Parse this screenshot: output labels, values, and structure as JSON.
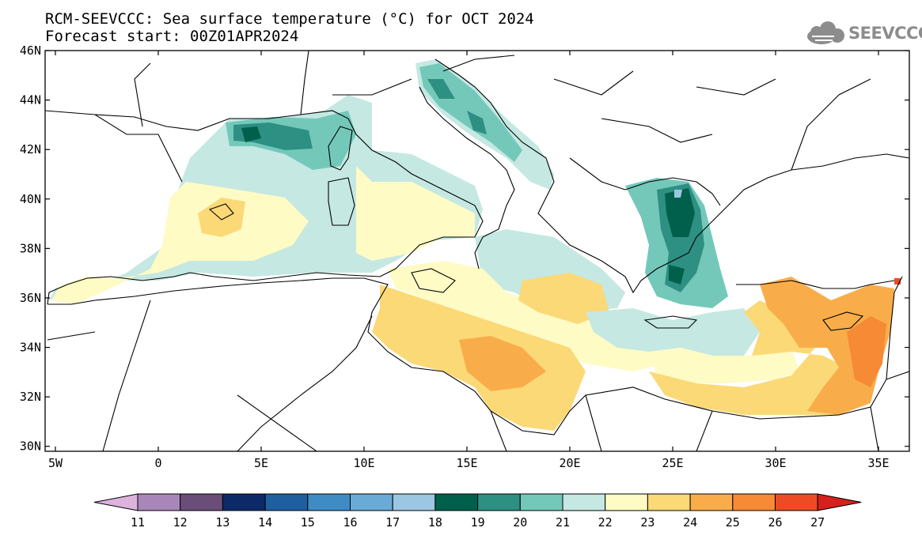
{
  "header": {
    "title_line1": "RCM-SEEVCCC: Sea surface temperature (°C) for OCT 2024",
    "title_line2": "Forecast start: 00Z01APR2024"
  },
  "logo": {
    "text": "SEEVCCC",
    "icon": "cloud-icon"
  },
  "map": {
    "lon_range": [
      -5.5,
      36.5
    ],
    "lat_range": [
      29.8,
      46
    ],
    "x_ticks": [
      {
        "lon": -5,
        "label": "5W"
      },
      {
        "lon": 0,
        "label": "0"
      },
      {
        "lon": 5,
        "label": "5E"
      },
      {
        "lon": 10,
        "label": "10E"
      },
      {
        "lon": 15,
        "label": "15E"
      },
      {
        "lon": 20,
        "label": "20E"
      },
      {
        "lon": 25,
        "label": "25E"
      },
      {
        "lon": 30,
        "label": "30E"
      },
      {
        "lon": 35,
        "label": "35E"
      }
    ],
    "y_ticks": [
      {
        "lat": 30,
        "label": "30N"
      },
      {
        "lat": 32,
        "label": "32N"
      },
      {
        "lat": 34,
        "label": "34N"
      },
      {
        "lat": 36,
        "label": "36N"
      },
      {
        "lat": 38,
        "label": "38N"
      },
      {
        "lat": 40,
        "label": "40N"
      },
      {
        "lat": 42,
        "label": "42N"
      },
      {
        "lat": 44,
        "label": "44N"
      },
      {
        "lat": 46,
        "label": "46N"
      }
    ]
  },
  "colorbar": {
    "unit": "°C",
    "labels": [
      "11",
      "12",
      "13",
      "14",
      "15",
      "16",
      "17",
      "18",
      "19",
      "20",
      "21",
      "22",
      "23",
      "24",
      "25",
      "26",
      "27"
    ],
    "colors": [
      "#dcb3dc",
      "#a986b9",
      "#6a4e78",
      "#0d2a68",
      "#1f5fa0",
      "#3f8cc5",
      "#6aaad6",
      "#9cc7e2",
      "#00604c",
      "#2e8f83",
      "#74c8ba",
      "#c5e8e2",
      "#fefbc5",
      "#fbd977",
      "#f9ad4a",
      "#f68a35",
      "#ef4a26",
      "#d6201e"
    ]
  },
  "chart_data": {
    "type": "heatmap",
    "variable": "Sea surface temperature",
    "unit": "°C",
    "period": "OCT 2024",
    "forecast_start": "00Z01APR2024",
    "color_levels": [
      11,
      12,
      13,
      14,
      15,
      16,
      17,
      18,
      19,
      20,
      21,
      22,
      23,
      24,
      25,
      26,
      27
    ]
  }
}
